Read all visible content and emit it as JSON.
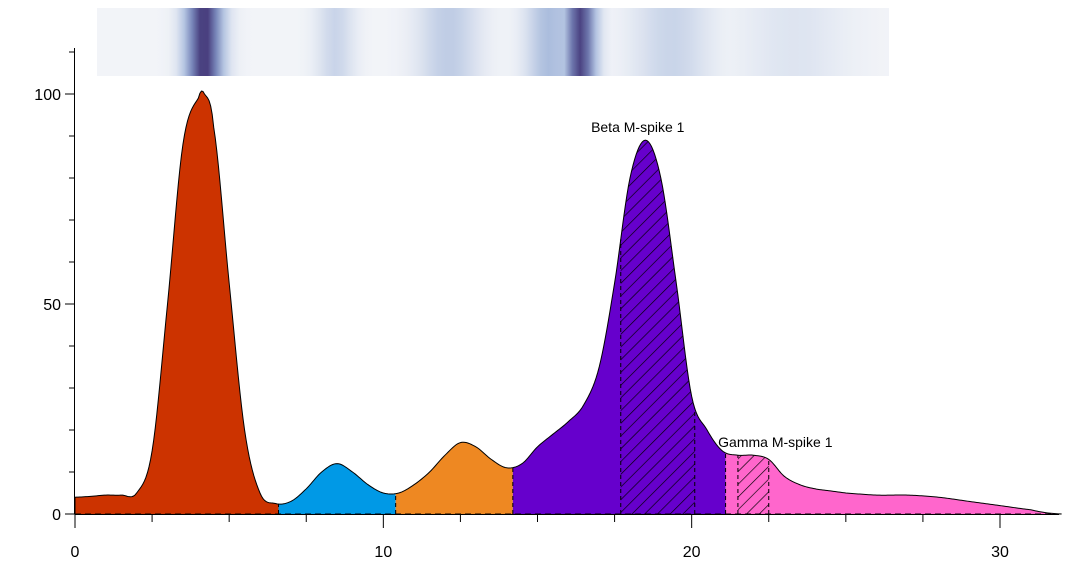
{
  "chart_data": {
    "type": "area",
    "title": "",
    "xlabel": "",
    "ylabel": "",
    "xlim": [
      0,
      32
    ],
    "ylim": [
      0,
      100
    ],
    "x_ticks": [
      0,
      10,
      20,
      30
    ],
    "y_ticks": [
      0,
      50,
      100
    ],
    "x_ticks_labeled": [
      "0",
      "10",
      "20",
      "30"
    ],
    "y_ticks_labeled": [
      "0",
      "50",
      "100"
    ],
    "grid": false,
    "curve": {
      "x": [
        0,
        0.5,
        1,
        1.5,
        2,
        2.5,
        3,
        3.5,
        4,
        4.2,
        4.5,
        5,
        5.5,
        6,
        6.5,
        7,
        7.5,
        8,
        8.5,
        9,
        9.5,
        10,
        10.5,
        11,
        11.5,
        12,
        12.5,
        13,
        13.5,
        14,
        14.5,
        15,
        15.5,
        16,
        16.5,
        17,
        17.5,
        18,
        18.5,
        19,
        19.5,
        20,
        20.5,
        21,
        21.5,
        22,
        22.5,
        23,
        23.5,
        24,
        24.5,
        25,
        26,
        27,
        28,
        29,
        30,
        31,
        31.5,
        32
      ],
      "y": [
        4,
        4.2,
        4.5,
        4.5,
        5,
        15,
        50,
        88,
        99,
        100,
        92,
        55,
        20,
        5,
        2.5,
        3,
        6,
        10,
        12,
        10,
        7,
        5,
        5,
        7,
        10,
        14,
        17,
        16,
        13,
        11,
        12,
        16,
        19,
        22,
        26,
        35,
        55,
        80,
        89,
        80,
        55,
        28,
        20,
        15,
        14,
        14,
        13,
        9,
        7,
        6,
        5.5,
        5,
        4.5,
        4.5,
        4,
        3,
        2,
        1,
        0.3,
        0
      ]
    },
    "fractions": [
      {
        "x0": 0,
        "x1": 6.6,
        "color": "#CC3300"
      },
      {
        "x0": 6.6,
        "x1": 10.4,
        "color": "#0099E6"
      },
      {
        "x0": 10.4,
        "x1": 14.2,
        "color": "#EE8822"
      },
      {
        "x0": 14.2,
        "x1": 21.1,
        "color": "#6600CC"
      },
      {
        "x0": 21.1,
        "x1": 32,
        "color": "#FF66CC"
      }
    ],
    "mspikes": [
      {
        "label": "Beta M-spike 1",
        "x0": 17.7,
        "x1": 20.1
      },
      {
        "label": "Gamma M-spike 1",
        "x0": 21.5,
        "x1": 22.5
      }
    ],
    "gel_strip": {
      "bands": [
        {
          "x": 4.2,
          "w": 1.2,
          "strength": 0.95
        },
        {
          "x": 8.5,
          "w": 1.2,
          "strength": 0.2
        },
        {
          "x": 12.2,
          "w": 2.0,
          "strength": 0.25
        },
        {
          "x": 15.5,
          "w": 1.5,
          "strength": 0.35
        },
        {
          "x": 16.5,
          "w": 1.0,
          "strength": 0.9
        },
        {
          "x": 19.5,
          "w": 2.5,
          "strength": 0.2
        },
        {
          "x": 23.5,
          "w": 3.5,
          "strength": 0.1
        }
      ],
      "base_color": "#F2F4F8",
      "band_color": "#3B2A6E"
    }
  }
}
